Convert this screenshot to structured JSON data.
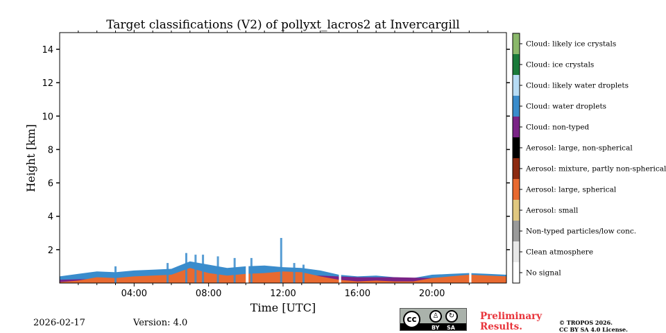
{
  "chart_data": {
    "type": "heatmap",
    "title": "Target classifications (V2) of pollyxt_lacros2 at Invercargill",
    "xlabel": "Time [UTC]",
    "ylabel": "Height [km]",
    "xlim": [
      0,
      24
    ],
    "ylim": [
      0,
      15
    ],
    "x_ticks": [
      4,
      8,
      12,
      16,
      20
    ],
    "x_tick_labels": [
      "04:00",
      "08:00",
      "12:00",
      "16:00",
      "20:00"
    ],
    "y_ticks": [
      2,
      4,
      6,
      8,
      10,
      12,
      14
    ],
    "y_tick_labels": [
      "2",
      "4",
      "6",
      "8",
      "10",
      "12",
      "14"
    ],
    "colorbar": [
      {
        "label": "Cloud: likely ice crystals",
        "color": "#8ab86a"
      },
      {
        "label": "Cloud: ice crystals",
        "color": "#1a7a3a"
      },
      {
        "label": "Cloud: likely water droplets",
        "color": "#b7dcf5"
      },
      {
        "label": "Cloud: water droplets",
        "color": "#3a8ccc"
      },
      {
        "label": "Cloud: non-typed",
        "color": "#7a2386"
      },
      {
        "label": "Aerosol: large, non-spherical",
        "color": "#000000"
      },
      {
        "label": "Aerosol: mixture, partly non-spherical",
        "color": "#8c2a10"
      },
      {
        "label": "Aerosol: large, spherical",
        "color": "#e86a30"
      },
      {
        "label": "Aerosol: small",
        "color": "#e0c880"
      },
      {
        "label": "Non-typed particles/low conc.",
        "color": "#9a9a9a"
      },
      {
        "label": "Clean atmosphere",
        "color": "#e8e8e8"
      },
      {
        "label": "No signal",
        "color": "#ffffff"
      }
    ],
    "layers": [
      {
        "class": "Cloud: water droplets",
        "color": "#3a8ccc",
        "x": [
          0,
          1,
          2,
          3,
          4,
          5,
          6,
          7,
          8,
          9,
          10,
          11,
          12,
          13,
          14,
          15,
          16,
          17,
          18,
          19,
          20,
          21,
          22,
          23,
          24
        ],
        "top": [
          0.4,
          0.55,
          0.7,
          0.65,
          0.75,
          0.8,
          0.85,
          1.3,
          1.1,
          0.9,
          1.0,
          1.05,
          0.95,
          0.9,
          0.75,
          0.5,
          0.4,
          0.45,
          0.35,
          0.3,
          0.5,
          0.55,
          0.6,
          0.55,
          0.5
        ]
      },
      {
        "class": "Cloud: non-typed",
        "color": "#7a2386",
        "x": [
          0,
          2,
          4,
          6,
          8,
          10,
          12,
          14,
          16,
          18,
          20,
          22,
          24
        ],
        "top": [
          0.2,
          0.25,
          0.3,
          0.35,
          0.4,
          0.45,
          0.5,
          0.45,
          0.35,
          0.35,
          0.3,
          0.3,
          0.3
        ]
      },
      {
        "class": "Aerosol: large, spherical",
        "color": "#e86a30",
        "x": [
          0,
          1,
          2,
          3,
          4,
          5,
          6,
          7,
          8,
          9,
          10,
          11,
          12,
          13,
          14,
          15,
          16,
          17,
          18,
          19,
          20,
          21,
          22,
          23,
          24
        ],
        "top": [
          0.05,
          0.15,
          0.35,
          0.3,
          0.4,
          0.45,
          0.5,
          0.9,
          0.6,
          0.45,
          0.55,
          0.6,
          0.7,
          0.65,
          0.4,
          0.2,
          0.1,
          0.15,
          0.1,
          0.1,
          0.3,
          0.4,
          0.5,
          0.45,
          0.4
        ]
      }
    ],
    "spikes": [
      {
        "x": 6.8,
        "top": 1.8,
        "color": "#3a8ccc"
      },
      {
        "x": 7.3,
        "top": 1.7,
        "color": "#3a8ccc"
      },
      {
        "x": 7.7,
        "top": 1.7,
        "color": "#3a8ccc"
      },
      {
        "x": 8.5,
        "top": 1.6,
        "color": "#3a8ccc"
      },
      {
        "x": 9.4,
        "top": 1.5,
        "color": "#3a8ccc"
      },
      {
        "x": 10.3,
        "top": 1.5,
        "color": "#3a8ccc"
      },
      {
        "x": 5.8,
        "top": 1.2,
        "color": "#3a8ccc"
      },
      {
        "x": 12.6,
        "top": 1.2,
        "color": "#3a8ccc"
      },
      {
        "x": 13.1,
        "top": 1.1,
        "color": "#3a8ccc"
      },
      {
        "x": 3.0,
        "top": 1.0,
        "color": "#3a8ccc"
      },
      {
        "x": 11.9,
        "top": 2.7,
        "color": "#3a8ccc"
      }
    ],
    "gaps": [
      {
        "x0": 10.0,
        "x1": 10.15
      },
      {
        "x0": 15.0,
        "x1": 15.12
      },
      {
        "x0": 22.0,
        "x1": 22.12
      }
    ]
  },
  "footer": {
    "date": "2026-02-17",
    "version": "Version: 4.0",
    "preliminary_line1": "Preliminary",
    "preliminary_line2": "Results.",
    "copyright_line1": "© TROPOS 2026.",
    "copyright_line2": "CC BY SA 4.0 License.",
    "license_badge": {
      "cc": "cc",
      "by": "BY",
      "sa": "SA"
    }
  }
}
